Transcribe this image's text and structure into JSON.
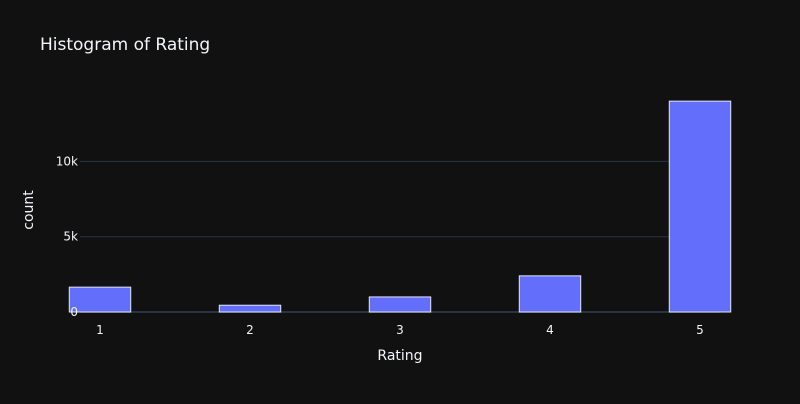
{
  "colors": {
    "background": "#111111",
    "bar_fill": "#636efa",
    "bar_stroke": "#e5e5f0",
    "grid": "#283442",
    "text": "#f2f5fa"
  },
  "chart_data": {
    "type": "bar",
    "title": "Histogram of Rating",
    "xlabel": "Rating",
    "ylabel": "count",
    "categories": [
      "1",
      "2",
      "3",
      "4",
      "5"
    ],
    "values": [
      1650,
      450,
      1000,
      2400,
      14000
    ],
    "ylim": [
      0,
      14740
    ],
    "yticks": [
      0,
      5000,
      10000
    ],
    "ytick_labels": [
      "0",
      "5k",
      "10k"
    ],
    "grid": true
  }
}
